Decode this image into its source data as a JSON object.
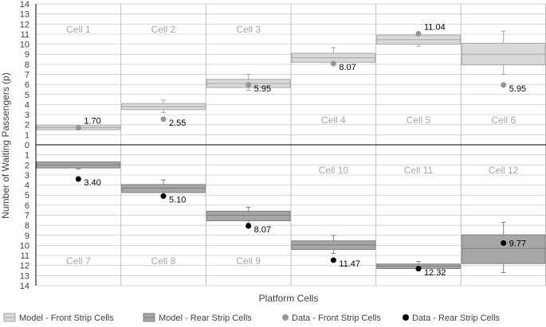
{
  "chart_data": {
    "type": "box-scatter",
    "ylabel": "Number of Waiting Passengers (p)",
    "xlabel": "Platform Cells",
    "ylim_top": [
      0,
      14
    ],
    "ylim_bottom": [
      0,
      14
    ],
    "y_ticks": [
      "14",
      "13",
      "12",
      "11",
      "10",
      "9",
      "8",
      "7",
      "6",
      "5",
      "4",
      "3",
      "2",
      "1",
      "0",
      "1",
      "2",
      "3",
      "4",
      "5",
      "6",
      "7",
      "8",
      "9",
      "10",
      "11",
      "12",
      "13",
      "14"
    ],
    "colors": {
      "front_fill": "#d9d9d9",
      "front_stroke": "#a6a6a6",
      "rear_fill": "#a6a6a6",
      "rear_stroke": "#7f7f7f",
      "front_dot": "#969696",
      "rear_dot": "#000000",
      "grid": "#c8c8c8",
      "axis": "#000000"
    },
    "front_cells": [
      {
        "label": "Cell 1",
        "col": 0,
        "box_low": 1.5,
        "median": 1.7,
        "box_high": 1.9,
        "whisker_low": 1.5,
        "whisker_high": 1.9,
        "data": 1.7,
        "data_label": "1.70"
      },
      {
        "label": "Cell 2",
        "col": 1,
        "box_low": 3.5,
        "median": 3.8,
        "box_high": 4.1,
        "whisker_low": 3.2,
        "whisker_high": 4.45,
        "data": 2.55,
        "data_label": "2.55"
      },
      {
        "label": "Cell 3",
        "col": 2,
        "box_low": 5.7,
        "median": 6.1,
        "box_high": 6.5,
        "whisker_low": 5.4,
        "whisker_high": 7.0,
        "data": 5.95,
        "data_label": "5.95"
      },
      {
        "label": "Cell 4",
        "col": 3,
        "box_low": 8.2,
        "median": 8.65,
        "box_high": 9.1,
        "whisker_low": 8.0,
        "whisker_high": 9.65,
        "data": 8.07,
        "data_label": "8.07"
      },
      {
        "label": "Cell 5",
        "col": 4,
        "box_low": 10.0,
        "median": 10.45,
        "box_high": 10.9,
        "whisker_low": 9.8,
        "whisker_high": 11.1,
        "data": 11.04,
        "data_label": "11.04"
      },
      {
        "label": "Cell 6",
        "col": 5,
        "box_low": 7.95,
        "median": 9.0,
        "box_high": 10.1,
        "whisker_low": 7.0,
        "whisker_high": 11.3,
        "data": 5.95,
        "data_label": "5.95"
      }
    ],
    "rear_cells": [
      {
        "label": "Cell 7",
        "col": 0,
        "box_low": 1.7,
        "median": 2.0,
        "box_high": 2.3,
        "whisker_low": 1.7,
        "whisker_high": 2.4,
        "data": 3.4,
        "data_label": "3.40"
      },
      {
        "label": "Cell 8",
        "col": 1,
        "box_low": 3.95,
        "median": 4.3,
        "box_high": 4.75,
        "whisker_low": 3.5,
        "whisker_high": 5.0,
        "data": 5.1,
        "data_label": "5.10"
      },
      {
        "label": "Cell 9",
        "col": 2,
        "box_low": 6.6,
        "median": 7.0,
        "box_high": 7.55,
        "whisker_low": 6.2,
        "whisker_high": 7.8,
        "data": 8.07,
        "data_label": "8.07"
      },
      {
        "label": "Cell 10",
        "col": 3,
        "box_low": 9.55,
        "median": 9.95,
        "box_high": 10.4,
        "whisker_low": 9.0,
        "whisker_high": 10.8,
        "data": 11.47,
        "data_label": "11.47"
      },
      {
        "label": "Cell 11",
        "col": 4,
        "box_low": 11.85,
        "median": 12.05,
        "box_high": 12.3,
        "whisker_low": 11.6,
        "whisker_high": 12.4,
        "data": 12.32,
        "data_label": "12.32"
      },
      {
        "label": "Cell 12",
        "col": 5,
        "box_low": 8.95,
        "median": 10.3,
        "box_high": 11.8,
        "whisker_low": 7.7,
        "whisker_high": 12.7,
        "data": 9.77,
        "data_label": "9.77"
      }
    ],
    "front_label_row": "bottom",
    "rear_label_row_cols_0_2": "bottom",
    "legend": [
      {
        "label": "Model - Front Strip Cells",
        "kind": "box-front"
      },
      {
        "label": "Model - Rear Strip Cells",
        "kind": "box-rear"
      },
      {
        "label": "Data - Front Strip Cells",
        "kind": "dot-front"
      },
      {
        "label": "Data - Rear Strip Cells",
        "kind": "dot-rear"
      }
    ]
  }
}
